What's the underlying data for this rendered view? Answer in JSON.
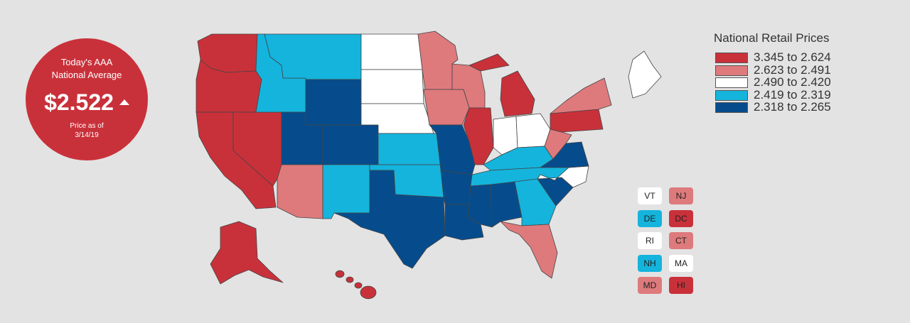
{
  "badge": {
    "line1": "Today's AAA",
    "line2": "National Average",
    "price": "$2.522",
    "trend_icon": "up-arrow-icon",
    "asof1": "Price as of",
    "asof2": "3/14/19"
  },
  "legend": {
    "title": "National Retail Prices",
    "items": [
      {
        "label": "3.345 to 2.624",
        "color": "#c9313a"
      },
      {
        "label": "2.623 to 2.491",
        "color": "#de7a7c"
      },
      {
        "label": "2.490 to 2.420",
        "color": "#ffffff"
      },
      {
        "label": "2.419 to 2.319",
        "color": "#14b4dd"
      },
      {
        "label": "2.318 to 2.265",
        "color": "#064c8c"
      }
    ]
  },
  "small_states": [
    {
      "abbr": "VT",
      "tier": 2
    },
    {
      "abbr": "NJ",
      "tier": 1
    },
    {
      "abbr": "DE",
      "tier": 3
    },
    {
      "abbr": "DC",
      "tier": 0
    },
    {
      "abbr": "RI",
      "tier": 2
    },
    {
      "abbr": "CT",
      "tier": 1
    },
    {
      "abbr": "NH",
      "tier": 3
    },
    {
      "abbr": "MA",
      "tier": 2
    },
    {
      "abbr": "MD",
      "tier": 1
    },
    {
      "abbr": "HI",
      "tier": 0
    }
  ],
  "states": [
    {
      "abbr": "WA",
      "tier": 0
    },
    {
      "abbr": "OR",
      "tier": 0
    },
    {
      "abbr": "CA",
      "tier": 0
    },
    {
      "abbr": "NV",
      "tier": 0
    },
    {
      "abbr": "ID",
      "tier": 3
    },
    {
      "abbr": "MT",
      "tier": 3
    },
    {
      "abbr": "WY",
      "tier": 4
    },
    {
      "abbr": "UT",
      "tier": 4
    },
    {
      "abbr": "CO",
      "tier": 4
    },
    {
      "abbr": "AZ",
      "tier": 1
    },
    {
      "abbr": "NM",
      "tier": 3
    },
    {
      "abbr": "ND",
      "tier": 2
    },
    {
      "abbr": "SD",
      "tier": 2
    },
    {
      "abbr": "NE",
      "tier": 2
    },
    {
      "abbr": "KS",
      "tier": 3
    },
    {
      "abbr": "OK",
      "tier": 3
    },
    {
      "abbr": "TX",
      "tier": 4
    },
    {
      "abbr": "MN",
      "tier": 1
    },
    {
      "abbr": "IA",
      "tier": 1
    },
    {
      "abbr": "MO",
      "tier": 4
    },
    {
      "abbr": "AR",
      "tier": 4
    },
    {
      "abbr": "LA",
      "tier": 4
    },
    {
      "abbr": "WI",
      "tier": 1
    },
    {
      "abbr": "IL",
      "tier": 0
    },
    {
      "abbr": "MI",
      "tier": 0
    },
    {
      "abbr": "IN",
      "tier": 2
    },
    {
      "abbr": "OH",
      "tier": 2
    },
    {
      "abbr": "KY",
      "tier": 3
    },
    {
      "abbr": "TN",
      "tier": 3
    },
    {
      "abbr": "MS",
      "tier": 4
    },
    {
      "abbr": "AL",
      "tier": 4
    },
    {
      "abbr": "GA",
      "tier": 3
    },
    {
      "abbr": "FL",
      "tier": 1
    },
    {
      "abbr": "SC",
      "tier": 4
    },
    {
      "abbr": "NC",
      "tier": 2
    },
    {
      "abbr": "VA",
      "tier": 4
    },
    {
      "abbr": "WV",
      "tier": 1
    },
    {
      "abbr": "PA",
      "tier": 0
    },
    {
      "abbr": "NY",
      "tier": 1
    },
    {
      "abbr": "ME",
      "tier": 2
    },
    {
      "abbr": "AK",
      "tier": 0
    }
  ]
}
